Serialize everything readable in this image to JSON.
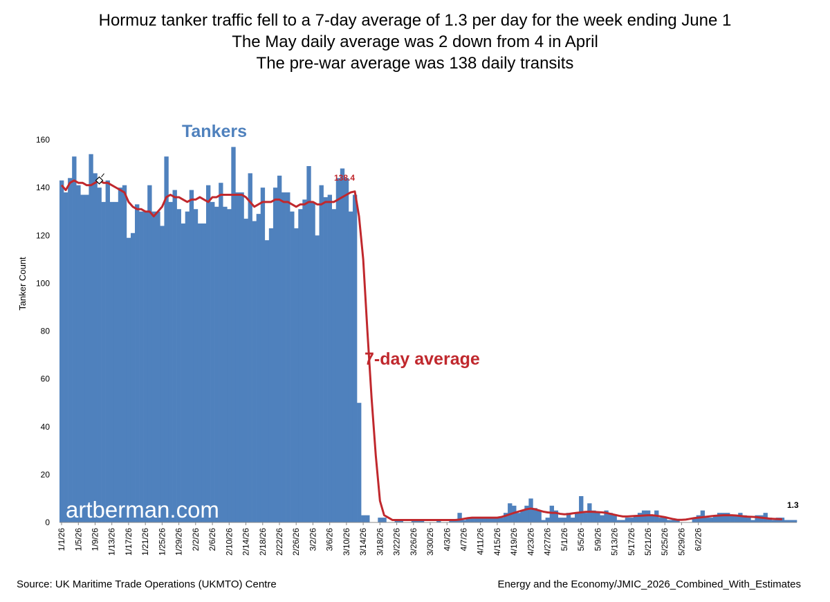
{
  "header": {
    "title_line1": "Hormuz tanker traffic fell to a 7-day average of 1.3 per day for the week ending June 1",
    "title_line2": "The May daily average was 2 down from 4 in April",
    "title_line3": "The pre-war average was 138 daily transits"
  },
  "footer": {
    "source": "Source: UK Maritime Trade Operations (UKMTO) Centre",
    "credit": "Energy and the Economy/JMIC_2026_Combined_With_Estimates"
  },
  "chart_data": {
    "type": "bar",
    "ylabel": "Tanker Count",
    "xlabel": "",
    "ylim": [
      0,
      160
    ],
    "y_ticks": [
      0,
      20,
      40,
      60,
      80,
      100,
      120,
      140,
      160
    ],
    "grid": false,
    "x_tick_labels": [
      "1/1/26",
      "1/5/26",
      "1/9/26",
      "1/13/26",
      "1/17/26",
      "1/21/26",
      "1/25/26",
      "1/29/26",
      "2/2/26",
      "2/6/26",
      "2/10/26",
      "2/14/26",
      "2/18/26",
      "2/22/26",
      "2/26/26",
      "3/2/26",
      "3/6/26",
      "3/10/26",
      "3/14/26",
      "3/18/26",
      "3/22/26",
      "3/26/26",
      "3/30/26",
      "4/3/26",
      "4/7/26",
      "4/11/26",
      "4/15/26",
      "4/19/26",
      "4/23/26",
      "4/27/26",
      "5/1/26",
      "5/5/26",
      "5/9/26",
      "5/13/26",
      "5/17/26",
      "5/21/26",
      "5/25/26",
      "5/29/26",
      "6/2/26"
    ],
    "series": [
      {
        "name": "Tankers",
        "type": "bar",
        "color": "#4F81BD",
        "values": [
          143,
          138,
          144,
          153,
          141,
          137,
          137,
          154,
          146,
          140,
          134,
          143,
          134,
          134,
          140,
          141,
          119,
          121,
          133,
          130,
          130,
          141,
          130,
          130,
          124,
          153,
          134,
          139,
          131,
          125,
          130,
          139,
          131,
          125,
          125,
          141,
          134,
          132,
          142,
          132,
          131,
          157,
          138,
          138,
          127,
          146,
          126,
          129,
          140,
          118,
          123,
          140,
          145,
          138,
          138,
          130,
          123,
          131,
          135,
          149,
          134,
          120,
          141,
          136,
          137,
          131,
          144,
          148,
          144,
          130,
          137,
          50,
          3,
          3,
          0,
          0,
          2,
          2,
          0,
          0,
          1,
          1,
          0,
          0,
          1,
          1,
          1,
          0,
          0,
          0,
          1,
          0,
          0,
          1,
          1,
          4,
          1,
          2,
          2,
          2,
          2,
          2,
          2,
          2,
          2,
          2,
          4,
          8,
          7,
          4,
          5,
          7,
          10,
          6,
          5,
          1,
          2,
          7,
          5,
          2,
          2,
          4,
          2,
          4,
          11,
          4,
          8,
          5,
          4,
          3,
          5,
          4,
          3,
          1,
          1,
          2,
          2,
          3,
          4,
          5,
          5,
          3,
          5,
          2,
          2,
          1,
          1,
          1,
          0,
          0,
          0,
          2,
          3,
          5,
          2,
          2,
          3,
          4,
          4,
          4,
          3,
          3,
          4,
          3,
          2,
          1,
          3,
          3,
          4,
          2,
          1,
          2,
          2,
          1,
          1,
          1
        ]
      },
      {
        "name": "7-day average",
        "type": "line",
        "color": "#C0282D",
        "values": [
          141,
          139,
          142,
          143,
          142,
          142,
          141,
          141,
          142,
          143,
          142,
          142,
          141,
          140,
          139,
          138,
          134,
          132,
          131,
          131,
          130,
          130,
          128,
          130,
          132,
          136,
          137,
          136,
          136,
          135,
          134,
          135,
          135,
          136,
          135,
          134,
          136,
          136,
          137,
          137,
          137,
          137,
          137,
          137,
          136,
          134,
          132,
          133,
          134,
          134,
          134,
          135,
          135,
          134,
          134,
          133,
          132,
          133,
          133,
          134,
          134,
          133,
          133,
          134,
          134,
          134,
          135,
          136,
          137,
          138,
          138.4,
          128,
          110,
          80,
          52,
          28,
          9,
          3,
          2,
          1,
          1,
          1,
          1,
          1,
          1,
          1,
          1,
          1,
          1,
          1,
          1,
          1,
          1,
          1,
          1,
          1.2,
          1.5,
          1.8,
          2,
          2,
          2,
          2,
          2,
          2,
          2,
          2.3,
          2.8,
          3.4,
          4,
          4.5,
          5,
          5.5,
          5.8,
          5.5,
          5,
          4.5,
          4.2,
          4,
          4,
          3.6,
          3.4,
          3.5,
          3.8,
          4,
          4.2,
          4.4,
          4.5,
          4.4,
          4.3,
          4.2,
          4,
          3.6,
          3.2,
          2.8,
          2.5,
          2.5,
          2.6,
          2.7,
          2.8,
          2.9,
          3,
          3,
          2.8,
          2.5,
          2.2,
          1.8,
          1.4,
          1.1,
          1.1,
          1.2,
          1.5,
          1.8,
          2,
          2.2,
          2.4,
          2.6,
          2.8,
          2.9,
          3,
          3,
          3,
          2.9,
          2.7,
          2.5,
          2.4,
          2.3,
          2.2,
          2,
          1.8,
          1.6,
          1.5,
          1.4,
          1.3
        ]
      }
    ],
    "annotations": {
      "chart_label": "Tankers",
      "line_label": "7-day average",
      "peak_value_label": "138.4",
      "last_value_label": "1.3",
      "watermark": "artberman.com"
    }
  }
}
